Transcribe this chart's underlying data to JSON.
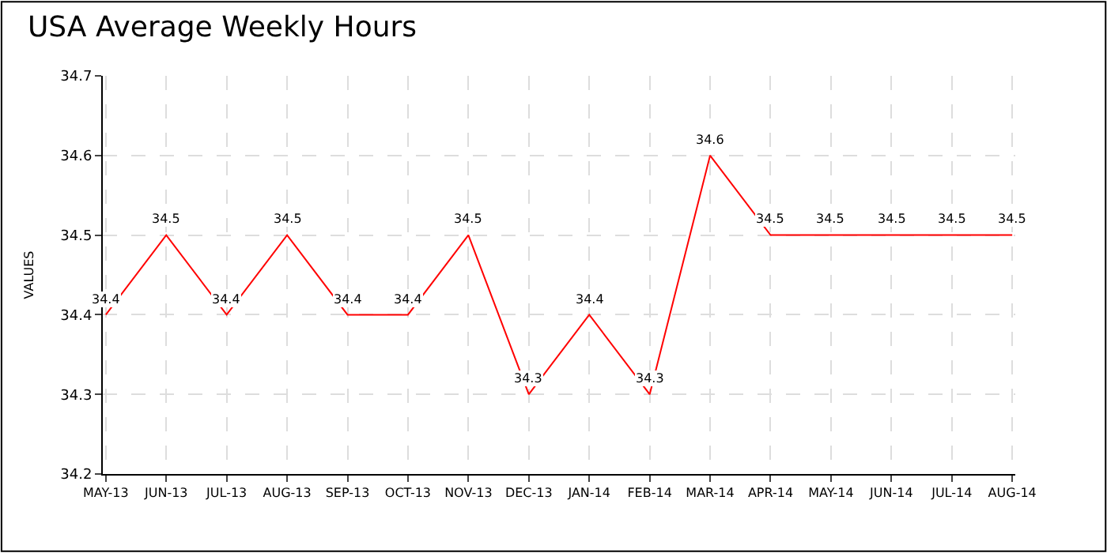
{
  "chart_data": {
    "type": "line",
    "title": "USA Average Weekly Hours",
    "ylabel": "VALUES",
    "categories": [
      "MAY-13",
      "JUN-13",
      "JUL-13",
      "AUG-13",
      "SEP-13",
      "OCT-13",
      "NOV-13",
      "DEC-13",
      "JAN-14",
      "FEB-14",
      "MAR-14",
      "APR-14",
      "MAY-14",
      "JUN-14",
      "JUL-14",
      "AUG-14"
    ],
    "series": [
      {
        "color": "#ff0000",
        "values": [
          34.4,
          34.5,
          34.4,
          34.5,
          34.4,
          34.4,
          34.5,
          34.3,
          34.4,
          34.3,
          34.6,
          34.5,
          34.5,
          34.5,
          34.5,
          34.5
        ]
      }
    ],
    "ylim": [
      34.2,
      34.7
    ],
    "yticks": [
      34.2,
      34.3,
      34.4,
      34.5,
      34.6,
      34.7
    ],
    "grid": true,
    "data_labels": true,
    "marker": "none",
    "line_style": "solid"
  }
}
